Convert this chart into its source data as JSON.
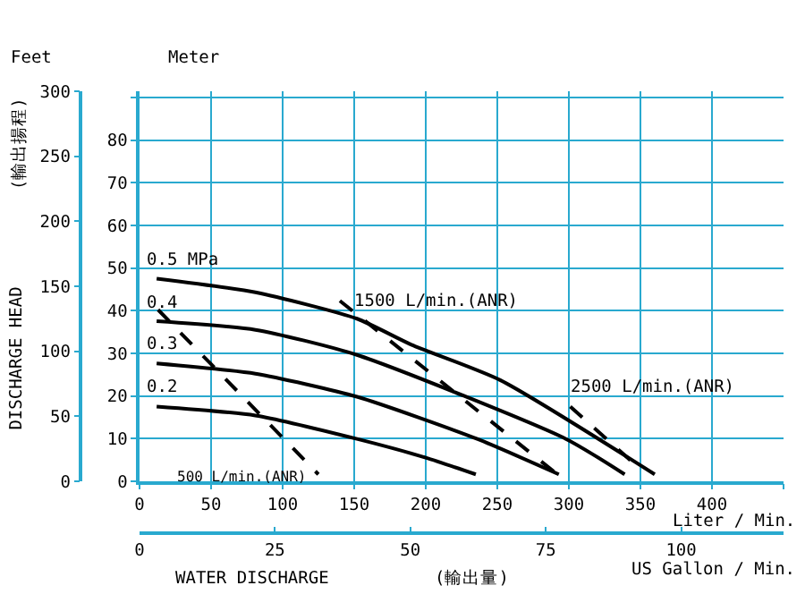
{
  "chart_data": {
    "type": "line",
    "xlabel": "Liter / Min.",
    "x2label": "US Gallon / Min.",
    "ylabel": "Meter",
    "y2label": "Feet",
    "annotations": [
      "DISCHARGE HEAD",
      "(輸出揚程)",
      "WATER DISCHARGE",
      "(輸出量)"
    ],
    "xlim": [
      0,
      450
    ],
    "xticks": [
      0,
      50,
      100,
      150,
      200,
      250,
      300,
      350,
      400,
      {
        "value": 450,
        "label": null
      }
    ],
    "x2lim": [
      0,
      118.9
    ],
    "x2ticks": [
      0,
      25,
      50,
      75,
      100
    ],
    "ylim": [
      0,
      91.4
    ],
    "yticks": [
      0,
      10,
      20,
      30,
      40,
      50,
      60,
      70,
      80,
      {
        "value": 90,
        "label": null
      }
    ],
    "y2lim": [
      0,
      300
    ],
    "y2ticks": [
      0,
      50,
      100,
      150,
      200,
      250,
      300
    ],
    "grid": true,
    "legend": false,
    "marker": "none",
    "series": [
      {
        "name": "0.5 MPa",
        "color": "#000000",
        "line_style": "solid",
        "x": [
          12,
          81,
          152,
          190,
          252,
          360
        ],
        "values": [
          47.5,
          44.3,
          38.1,
          32,
          23.7,
          1.6
        ]
      },
      {
        "name": "0.4",
        "color": "#000000",
        "line_style": "solid",
        "x": [
          12,
          81,
          152,
          298,
          339
        ],
        "values": [
          37.5,
          35.5,
          29.6,
          9.9,
          1.6
        ]
      },
      {
        "name": "0.3",
        "color": "#000000",
        "line_style": "solid",
        "x": [
          12,
          81,
          152,
          236,
          293
        ],
        "values": [
          27.6,
          25.2,
          19.8,
          9.9,
          1.6
        ]
      },
      {
        "name": "0.2",
        "color": "#000000",
        "line_style": "solid",
        "x": [
          12,
          81,
          152,
          200,
          235
        ],
        "values": [
          17.5,
          15.4,
          9.9,
          5.5,
          1.6
        ]
      },
      {
        "name": "500 L/min.(ANR)",
        "color": "#000000",
        "line_style": "dashed",
        "x": [
          13,
          125
        ],
        "values": [
          40.2,
          1.6
        ]
      },
      {
        "name": "1500 L/min.(ANR)",
        "color": "#000000",
        "line_style": "dashed",
        "x": [
          140,
          292
        ],
        "values": [
          42.3,
          1.6
        ]
      },
      {
        "name": "2500 L/min.(ANR)",
        "color": "#000000",
        "line_style": "dashed",
        "x": [
          301,
          351
        ],
        "values": [
          17.5,
          2.5
        ]
      }
    ]
  }
}
